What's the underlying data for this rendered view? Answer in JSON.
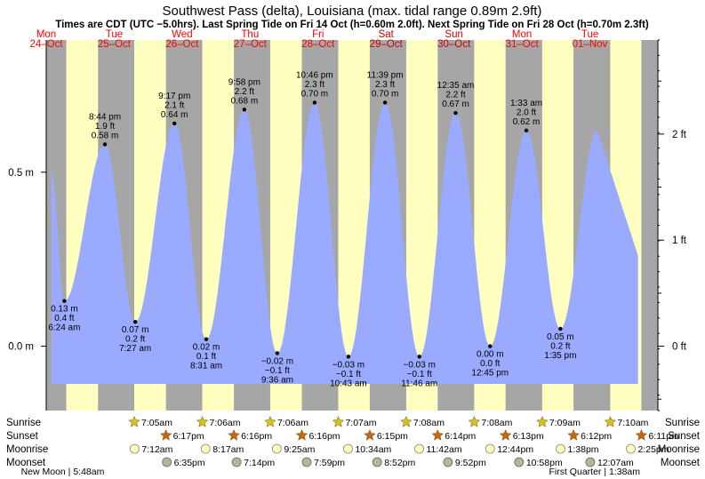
{
  "chart_data": {
    "type": "area",
    "title": "Southwest Pass (delta), Louisiana (max. tidal range 0.89m 2.9ft)",
    "subtitle": "Times are CDT (UTC −5.0hrs). Last Spring Tide on Fri 14 Oct (h=0.60m 2.0ft). Next Spring Tide on Fri 28 Oct (h=0.70m 2.3ft)",
    "x_range_hours": [
      0,
      216
    ],
    "ylim_m": [
      -0.185,
      0.88
    ],
    "left_ticks": [
      {
        "value_m": 0.5,
        "label": "0.5 m"
      },
      {
        "value_m": 0.0,
        "label": "0.0 m"
      }
    ],
    "right_ticks": [
      {
        "value_ft": 2,
        "label": "2 ft"
      },
      {
        "value_ft": 1,
        "label": "1 ft"
      },
      {
        "value_ft": 0,
        "label": "0 ft"
      }
    ],
    "days": [
      {
        "dow": "Mon",
        "date": "24–Oct",
        "weekend": false
      },
      {
        "dow": "Tue",
        "date": "25–Oct",
        "weekend": false
      },
      {
        "dow": "Wed",
        "date": "26–Oct",
        "weekend": false
      },
      {
        "dow": "Thu",
        "date": "27–Oct",
        "weekend": false
      },
      {
        "dow": "Fri",
        "date": "28–Oct",
        "weekend": false
      },
      {
        "dow": "Sat",
        "date": "29–Oct",
        "weekend": true
      },
      {
        "dow": "Sun",
        "date": "30–Oct",
        "weekend": true
      },
      {
        "dow": "Mon",
        "date": "31–Oct",
        "weekend": false
      },
      {
        "dow": "Tue",
        "date": "01–Nov",
        "weekend": false
      }
    ],
    "daylight": [
      {
        "rise_h": 7.08,
        "set_h": 18.28
      },
      {
        "rise_h": 31.08,
        "set_h": 42.28
      },
      {
        "rise_h": 55.1,
        "set_h": 66.27
      },
      {
        "rise_h": 79.1,
        "set_h": 90.27
      },
      {
        "rise_h": 103.12,
        "set_h": 114.25
      },
      {
        "rise_h": 127.13,
        "set_h": 138.23
      },
      {
        "rise_h": 151.13,
        "set_h": 162.22
      },
      {
        "rise_h": 175.15,
        "set_h": 186.2
      },
      {
        "rise_h": 199.17,
        "set_h": 210.18
      }
    ],
    "tide_series_start": {
      "hour": 1.8,
      "height_m": 0.5
    },
    "tide_series_end": {
      "hour": 209.0,
      "height_m": 0.26
    },
    "extremes": [
      {
        "hour": 6.4,
        "m": 0.13,
        "label_m": "0.13 m",
        "label_ft": "0.4 ft",
        "time": "6:24 am",
        "type": "low"
      },
      {
        "hour": 20.73,
        "m": 0.58,
        "label_m": "0.58 m",
        "label_ft": "1.9 ft",
        "time": "8:44 pm",
        "type": "high"
      },
      {
        "hour": 31.45,
        "m": 0.07,
        "label_m": "0.07 m",
        "label_ft": "0.2 ft",
        "time": "7:27 am",
        "type": "low"
      },
      {
        "hour": 45.28,
        "m": 0.64,
        "label_m": "0.64 m",
        "label_ft": "2.1 ft",
        "time": "9:17 pm",
        "type": "high"
      },
      {
        "hour": 56.52,
        "m": 0.02,
        "label_m": "0.02 m",
        "label_ft": "0.1 ft",
        "time": "8:31 am",
        "type": "low"
      },
      {
        "hour": 69.97,
        "m": 0.68,
        "label_m": "0.68 m",
        "label_ft": "2.2 ft",
        "time": "9:58 pm",
        "type": "high"
      },
      {
        "hour": 81.6,
        "m": -0.02,
        "label_m": "−0.02 m",
        "label_ft": "−0.1 ft",
        "time": "9:36 am",
        "type": "low"
      },
      {
        "hour": 94.77,
        "m": 0.7,
        "label_m": "0.70 m",
        "label_ft": "2.3 ft",
        "time": "10:46 pm",
        "type": "high"
      },
      {
        "hour": 106.72,
        "m": -0.03,
        "label_m": "−0.03 m",
        "label_ft": "−0.1 ft",
        "time": "10:43 am",
        "type": "low"
      },
      {
        "hour": 119.65,
        "m": 0.7,
        "label_m": "0.70 m",
        "label_ft": "2.3 ft",
        "time": "11:39 pm",
        "type": "high"
      },
      {
        "hour": 131.77,
        "m": -0.03,
        "label_m": "−0.03 m",
        "label_ft": "−0.1 ft",
        "time": "11:46 am",
        "type": "low"
      },
      {
        "hour": 144.58,
        "m": 0.67,
        "label_m": "0.67 m",
        "label_ft": "2.2 ft",
        "time": "12:35 am",
        "type": "high"
      },
      {
        "hour": 156.75,
        "m": 0.0,
        "label_m": "0.00 m",
        "label_ft": "0.0 ft",
        "time": "12:45 pm",
        "type": "low"
      },
      {
        "hour": 169.55,
        "m": 0.62,
        "label_m": "0.62 m",
        "label_ft": "2.0 ft",
        "time": "1:33 am",
        "type": "high"
      },
      {
        "hour": 181.58,
        "m": 0.05,
        "label_m": "0.05 m",
        "label_ft": "0.2 ft",
        "time": "1:35 pm",
        "type": "low"
      }
    ],
    "legend_rows": {
      "sunrise": "Sunrise",
      "sunset": "Sunset",
      "moonrise": "Moonrise",
      "moonset": "Moonset"
    },
    "sunrise": [
      {
        "hour": 31.08,
        "label": "7:05am"
      },
      {
        "hour": 55.1,
        "label": "7:06am"
      },
      {
        "hour": 79.1,
        "label": "7:06am"
      },
      {
        "hour": 103.12,
        "label": "7:07am"
      },
      {
        "hour": 127.13,
        "label": "7:08am"
      },
      {
        "hour": 151.13,
        "label": "7:08am"
      },
      {
        "hour": 175.15,
        "label": "7:09am"
      },
      {
        "hour": 199.17,
        "label": "7:10am"
      }
    ],
    "sunset": [
      {
        "hour": 42.28,
        "label": "6:17pm"
      },
      {
        "hour": 66.27,
        "label": "6:16pm"
      },
      {
        "hour": 90.27,
        "label": "6:16pm"
      },
      {
        "hour": 114.25,
        "label": "6:15pm"
      },
      {
        "hour": 138.23,
        "label": "6:14pm"
      },
      {
        "hour": 162.22,
        "label": "6:13pm"
      },
      {
        "hour": 186.2,
        "label": "6:12pm"
      },
      {
        "hour": 210.18,
        "label": "6:11pm"
      }
    ],
    "moonrise": [
      {
        "hour": 31.2,
        "label": "7:12am"
      },
      {
        "hour": 56.28,
        "label": "8:17am"
      },
      {
        "hour": 81.42,
        "label": "9:25am"
      },
      {
        "hour": 106.57,
        "label": "10:34am"
      },
      {
        "hour": 131.7,
        "label": "11:42am"
      },
      {
        "hour": 156.73,
        "label": "12:44pm"
      },
      {
        "hour": 181.63,
        "label": "1:38pm"
      },
      {
        "hour": 206.42,
        "label": "2:25pm"
      }
    ],
    "moonset": [
      {
        "hour": 42.58,
        "label": "6:35pm"
      },
      {
        "hour": 67.23,
        "label": "7:14pm"
      },
      {
        "hour": 91.98,
        "label": "7:59pm"
      },
      {
        "hour": 116.87,
        "label": "8:52pm"
      },
      {
        "hour": 141.87,
        "label": "9:52pm"
      },
      {
        "hour": 166.97,
        "label": "10:58pm"
      },
      {
        "hour": 192.12,
        "label": "12:07am"
      }
    ],
    "moon_phases": [
      {
        "hour": 5.8,
        "label": "New Moon | 5:48am"
      },
      {
        "hour": 193.63,
        "label": "First Quarter | 1:38am"
      }
    ],
    "colors": {
      "night": "#a6a6a6",
      "day": "#ffffc0",
      "water": "#9aabff",
      "day_label": "#ff0000",
      "weekend_label": "#cc0000",
      "sunrise_star": "#d8c020",
      "sunset_star": "#c86414",
      "moonrise_disc": "#ffffc0",
      "moonset_disc": "#b4b4a0"
    }
  }
}
